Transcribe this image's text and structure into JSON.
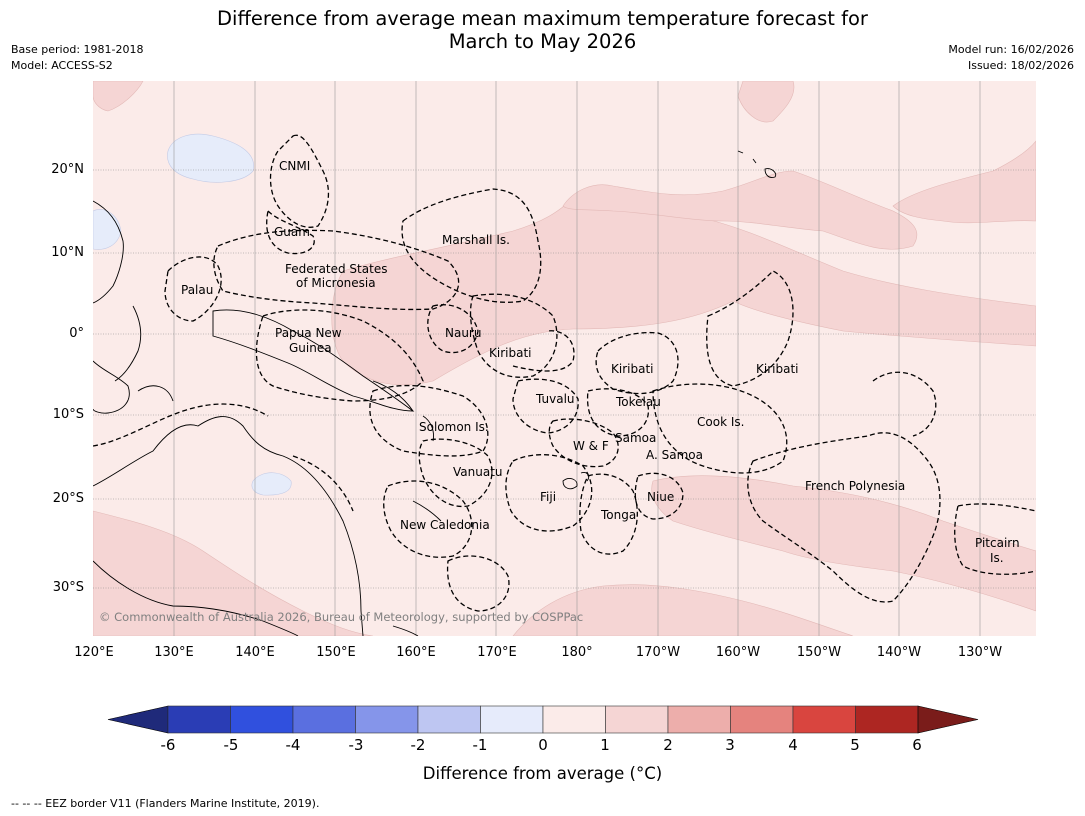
{
  "title": {
    "line1": "Difference from average mean maximum temperature forecast for",
    "line2": "March to May 2026"
  },
  "meta": {
    "base_period": "Base period: 1981-2018",
    "model": "Model: ACCESS-S2",
    "model_run": "Model run: 16/02/2026",
    "issued": "Issued: 18/02/2026"
  },
  "map": {
    "lat_labels": [
      "20°N",
      "10°N",
      "0°",
      "10°S",
      "20°S",
      "30°S"
    ],
    "lon_labels": [
      "120°E",
      "130°E",
      "140°E",
      "150°E",
      "160°E",
      "170°E",
      "180°",
      "170°W",
      "160°W",
      "150°W",
      "140°W",
      "130°W"
    ],
    "regions": {
      "cnmi": "CNMI",
      "guam": "Guam",
      "marshall": "Marshall Is.",
      "fsm_1": "Federated States",
      "fsm_2": "of Micronesia",
      "palau": "Palau",
      "png_1": "Papua New",
      "png_2": "Guinea",
      "nauru": "Nauru",
      "kiribati_w": "Kiribati",
      "kiribati_c": "Kiribati",
      "kiribati_e": "Kiribati",
      "tuvalu": "Tuvalu",
      "tokelau": "Tokelau",
      "cook": "Cook Is.",
      "solomon": "Solomon Is.",
      "wf": "W & F",
      "samoa": "Samoa",
      "asamoa": "A. Samoa",
      "vanuatu": "Vanuatu",
      "fiji": "Fiji",
      "niue": "Niue",
      "tonga": "Tonga",
      "french_polynesia": "French Polynesia",
      "new_caledonia": "New Caledonia",
      "pitcairn_1": "Pitcairn",
      "pitcairn_2": "Is."
    },
    "copyright": "© Commonwealth of Australia 2026, Bureau of Meteorology, supported by COSPPac",
    "colors": {
      "base": "#fbebe9",
      "warm1": "#f5d5d4",
      "cool1": "#e6ecfa",
      "border": "#000000",
      "grid": "#999999"
    }
  },
  "colorbar": {
    "ticks": [
      "-6",
      "-5",
      "-4",
      "-3",
      "-2",
      "-1",
      "0",
      "1",
      "2",
      "3",
      "4",
      "5",
      "6"
    ],
    "colors": [
      "#1f2a7a",
      "#2a3db5",
      "#3050de",
      "#5a6fe0",
      "#8595ea",
      "#bec6f2",
      "#e6ebfb",
      "#fbebe9",
      "#f5d5d4",
      "#edaeab",
      "#e5837e",
      "#d9453f",
      "#ad2622",
      "#7a1c1a"
    ],
    "label": "Difference from average (°C)"
  },
  "footnote": "--  --  -- EEZ border V11 (Flanders Marine Institute, 2019)."
}
